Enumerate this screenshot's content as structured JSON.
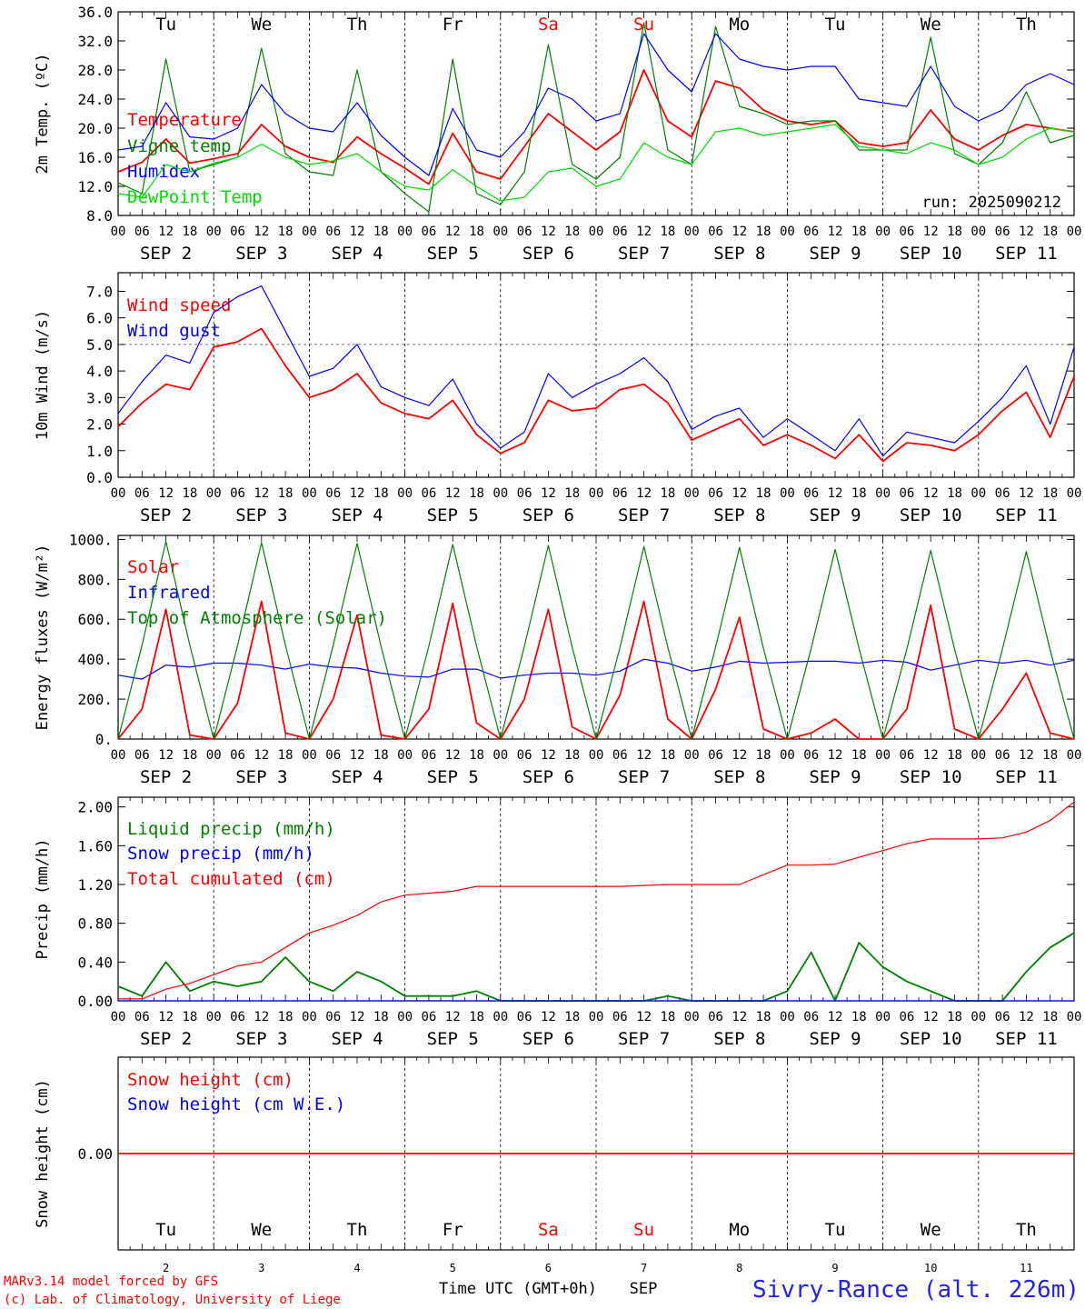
{
  "run_label": "run: 2025090212",
  "footer": {
    "credit_line1": "MARv3.14 model forced by GFS",
    "credit_line2": "(c) Lab. of Climatology, University of Liege",
    "xlabel": "Time UTC (GMT+0h)",
    "month": "SEP",
    "station": "Sivry-Rance (alt. 226m)"
  },
  "colors": {
    "red": "#ff0000",
    "blue": "#0000ff",
    "green": "#008000",
    "lightgreen": "#00dd00",
    "text": "#000000"
  },
  "days": [
    "Tu",
    "We",
    "Th",
    "Fr",
    "Sa",
    "Su",
    "Mo",
    "Tu",
    "We",
    "Th"
  ],
  "weekend_flags": [
    false,
    false,
    false,
    false,
    true,
    true,
    false,
    false,
    false,
    false
  ],
  "day_numbers": [
    "2",
    "3",
    "4",
    "5",
    "6",
    "7",
    "8",
    "9",
    "10",
    "11"
  ],
  "date_labels": [
    "SEP  2",
    "SEP  3",
    "SEP  4",
    "SEP  5",
    "SEP  6",
    "SEP  7",
    "SEP  8",
    "SEP  9",
    "SEP 10",
    "SEP 11"
  ],
  "hour_labels": [
    "00",
    "06",
    "12",
    "18"
  ],
  "final_hour_label": "00",
  "chart_data": [
    {
      "type": "line",
      "ylabel": "2m Temp. (ºC)",
      "ylim": [
        8,
        36
      ],
      "yticks": [
        8,
        12,
        16,
        20,
        24,
        28,
        32,
        36
      ],
      "ytick_labels": [
        "8.0",
        "12.0",
        "16.0",
        "20.0",
        "24.0",
        "28.0",
        "32.0",
        "36.0"
      ],
      "x_hours": [
        0,
        6,
        12,
        18,
        24,
        30,
        36,
        42,
        48,
        54,
        60,
        66,
        72,
        78,
        84,
        90,
        96,
        102,
        108,
        114,
        120,
        126,
        132,
        138,
        144,
        150,
        156,
        162,
        168,
        174,
        180,
        186,
        192,
        198,
        204,
        210,
        216,
        222,
        228,
        234,
        240
      ],
      "series": [
        {
          "name": "Temperature",
          "color": "#ff0000",
          "values": [
            14,
            15.3,
            18.5,
            15.2,
            15.8,
            16.5,
            20.5,
            17.5,
            16,
            15.3,
            18.8,
            16.5,
            14.5,
            12.3,
            19.3,
            14,
            13,
            17.5,
            22,
            19.5,
            17,
            19.5,
            28,
            21,
            18.8,
            26.5,
            25.5,
            22.5,
            21,
            20.5,
            21,
            18,
            17.5,
            18,
            22.5,
            18.5,
            17,
            19,
            20.5,
            20,
            19.5
          ]
        },
        {
          "name": "Vigne temp",
          "color": "#008000",
          "values": [
            12.5,
            11,
            29.5,
            14,
            15,
            16,
            31,
            16.5,
            14,
            13.5,
            28,
            14,
            11,
            8.5,
            29.5,
            11,
            9.5,
            14,
            31.5,
            15,
            13,
            16,
            34.5,
            17,
            15,
            34,
            23,
            22,
            20.5,
            21,
            21,
            17,
            17,
            17,
            32.5,
            16.5,
            15,
            18,
            25,
            18,
            19
          ]
        },
        {
          "name": "Humidex",
          "color": "#0000ff",
          "values": [
            17,
            17.5,
            23.5,
            18.8,
            18.5,
            20,
            26,
            22,
            20,
            19.5,
            23.5,
            19,
            16,
            13.5,
            22.7,
            17,
            16,
            19.5,
            25.5,
            24,
            21,
            22,
            33,
            28,
            25,
            33,
            29.5,
            28.5,
            28,
            28.5,
            28.5,
            24,
            23.5,
            23,
            28.5,
            23,
            21,
            22.5,
            26,
            27.5,
            26
          ]
        },
        {
          "name": "DewPoint Temp",
          "color": "#00dd00",
          "values": [
            11,
            10.5,
            15,
            14,
            15.2,
            16,
            17.8,
            16,
            15,
            15.5,
            16.5,
            14,
            12,
            11.5,
            14.3,
            12,
            10,
            10.5,
            14,
            14.5,
            12,
            13,
            18,
            16,
            15,
            19.5,
            20,
            19,
            19.5,
            20,
            20.5,
            17.5,
            17,
            16.5,
            18,
            17,
            15,
            16,
            18.5,
            20,
            19.5
          ]
        }
      ]
    },
    {
      "type": "line",
      "ylabel": "10m Wind (m/s)",
      "ylim": [
        0,
        7.7
      ],
      "yticks": [
        0,
        1,
        2,
        3,
        4,
        5,
        6,
        7
      ],
      "ytick_labels": [
        "0.0",
        "1.0",
        "2.0",
        "3.0",
        "4.0",
        "5.0",
        "6.0",
        "7.0"
      ],
      "reference_line": 5.0,
      "x_hours": [
        0,
        6,
        12,
        18,
        24,
        30,
        36,
        42,
        48,
        54,
        60,
        66,
        72,
        78,
        84,
        90,
        96,
        102,
        108,
        114,
        120,
        126,
        132,
        138,
        144,
        150,
        156,
        162,
        168,
        174,
        180,
        186,
        192,
        198,
        204,
        210,
        216,
        222,
        228,
        234,
        240
      ],
      "series": [
        {
          "name": "Wind speed",
          "color": "#ff0000",
          "values": [
            1.9,
            2.8,
            3.5,
            3.3,
            4.9,
            5.1,
            5.6,
            4.2,
            3,
            3.3,
            3.9,
            2.8,
            2.4,
            2.2,
            2.9,
            1.6,
            0.9,
            1.3,
            2.9,
            2.5,
            2.6,
            3.3,
            3.5,
            2.8,
            1.4,
            1.8,
            2.2,
            1.2,
            1.6,
            1.2,
            0.7,
            1.6,
            0.6,
            1.3,
            1.2,
            1,
            1.6,
            2.5,
            3.2,
            1.5,
            3.8
          ]
        },
        {
          "name": "Wind gust",
          "color": "#0000ff",
          "values": [
            2.4,
            3.6,
            4.6,
            4.3,
            6.2,
            6.8,
            7.2,
            5.5,
            3.8,
            4.1,
            5,
            3.4,
            3,
            2.7,
            3.7,
            2,
            1.1,
            1.7,
            3.9,
            3,
            3.5,
            3.9,
            4.5,
            3.6,
            1.8,
            2.3,
            2.6,
            1.5,
            2.2,
            1.6,
            1,
            2.2,
            0.8,
            1.7,
            1.5,
            1.3,
            2.1,
            3,
            4.2,
            2,
            4.9
          ]
        }
      ]
    },
    {
      "type": "line",
      "ylabel": "Energy fluxes (W/m²)",
      "ylim": [
        0,
        1020
      ],
      "yticks": [
        0,
        200,
        400,
        600,
        800,
        1000
      ],
      "ytick_labels": [
        "0.",
        "200.",
        "400.",
        "600.",
        "800.",
        "1000."
      ],
      "x_hours": [
        0,
        6,
        12,
        18,
        24,
        30,
        36,
        42,
        48,
        54,
        60,
        66,
        72,
        78,
        84,
        90,
        96,
        102,
        108,
        114,
        120,
        126,
        132,
        138,
        144,
        150,
        156,
        162,
        168,
        174,
        180,
        186,
        192,
        198,
        204,
        210,
        216,
        222,
        228,
        234,
        240
      ],
      "series": [
        {
          "name": "Solar",
          "color": "#ff0000",
          "values": [
            0,
            150,
            650,
            20,
            0,
            180,
            690,
            30,
            0,
            200,
            620,
            20,
            0,
            150,
            680,
            80,
            0,
            200,
            650,
            60,
            0,
            220,
            690,
            100,
            0,
            250,
            610,
            50,
            0,
            30,
            100,
            0,
            0,
            150,
            670,
            50,
            0,
            150,
            330,
            30,
            0
          ]
        },
        {
          "name": "Infrared",
          "color": "#0000ff",
          "values": [
            320,
            300,
            370,
            360,
            380,
            380,
            370,
            350,
            375,
            360,
            355,
            330,
            315,
            310,
            350,
            350,
            305,
            320,
            330,
            330,
            320,
            340,
            400,
            380,
            340,
            360,
            390,
            380,
            385,
            390,
            390,
            380,
            395,
            385,
            345,
            370,
            395,
            380,
            395,
            370,
            395
          ]
        },
        {
          "name": "Top of Atmosphere (Solar)",
          "color": "#008000",
          "values": [
            0,
            470,
            990,
            470,
            0,
            470,
            985,
            470,
            0,
            470,
            980,
            465,
            0,
            465,
            975,
            465,
            0,
            465,
            970,
            460,
            0,
            460,
            965,
            460,
            0,
            460,
            960,
            455,
            0,
            455,
            950,
            455,
            0,
            450,
            945,
            450,
            0,
            450,
            940,
            445,
            0
          ]
        }
      ]
    },
    {
      "type": "line",
      "ylabel": "Precip (mm/h)",
      "ylim": [
        0,
        2.1
      ],
      "yticks": [
        0,
        0.4,
        0.8,
        1.2,
        1.6,
        2.0
      ],
      "ytick_labels": [
        "0.00",
        "0.40",
        "0.80",
        "1.20",
        "1.60",
        "2.00"
      ],
      "x_hours": [
        0,
        6,
        12,
        18,
        24,
        30,
        36,
        42,
        48,
        54,
        60,
        66,
        72,
        78,
        84,
        90,
        96,
        102,
        108,
        114,
        120,
        126,
        132,
        138,
        144,
        150,
        156,
        162,
        168,
        174,
        180,
        186,
        192,
        198,
        204,
        210,
        216,
        222,
        228,
        234,
        240
      ],
      "series": [
        {
          "name": "Liquid precip (mm/h)",
          "color": "#008000",
          "values": [
            0.15,
            0.05,
            0.4,
            0.1,
            0.2,
            0.15,
            0.2,
            0.45,
            0.2,
            0.1,
            0.3,
            0.2,
            0.05,
            0.05,
            0.05,
            0.1,
            0,
            0,
            0,
            0,
            0,
            0,
            0,
            0.05,
            0,
            0,
            0,
            0,
            0.1,
            0.5,
            0,
            0.6,
            0.35,
            0.2,
            0.1,
            0,
            0,
            0,
            0.3,
            0.55,
            0.7
          ]
        },
        {
          "name": "Snow precip (mm/h)",
          "color": "#0000ff",
          "values": [
            0,
            0,
            0,
            0,
            0,
            0,
            0,
            0,
            0,
            0,
            0,
            0,
            0,
            0,
            0,
            0,
            0,
            0,
            0,
            0,
            0,
            0,
            0,
            0,
            0,
            0,
            0,
            0,
            0,
            0,
            0,
            0,
            0,
            0,
            0,
            0,
            0,
            0,
            0,
            0,
            0
          ]
        },
        {
          "name": "Total cumulated (cm)",
          "color": "#ff0000",
          "values": [
            0.02,
            0.02,
            0.12,
            0.18,
            0.27,
            0.36,
            0.4,
            0.55,
            0.7,
            0.78,
            0.88,
            1.02,
            1.09,
            1.11,
            1.13,
            1.18,
            1.18,
            1.18,
            1.18,
            1.18,
            1.18,
            1.18,
            1.19,
            1.2,
            1.2,
            1.2,
            1.2,
            1.3,
            1.4,
            1.4,
            1.41,
            1.48,
            1.55,
            1.62,
            1.67,
            1.67,
            1.67,
            1.68,
            1.74,
            1.86,
            2.05
          ]
        }
      ]
    },
    {
      "type": "line",
      "ylabel": "Snow height (cm)",
      "ylim": [
        -1,
        1
      ],
      "yticks": [
        0
      ],
      "ytick_labels": [
        "0.00"
      ],
      "x_hours": [
        0,
        240
      ],
      "series": [
        {
          "name": "Snow height (cm)",
          "color": "#ff0000",
          "values": [
            0,
            0
          ]
        },
        {
          "name": "Snow height (cm W.E.)",
          "color": "#0000ff",
          "values": []
        }
      ]
    }
  ]
}
